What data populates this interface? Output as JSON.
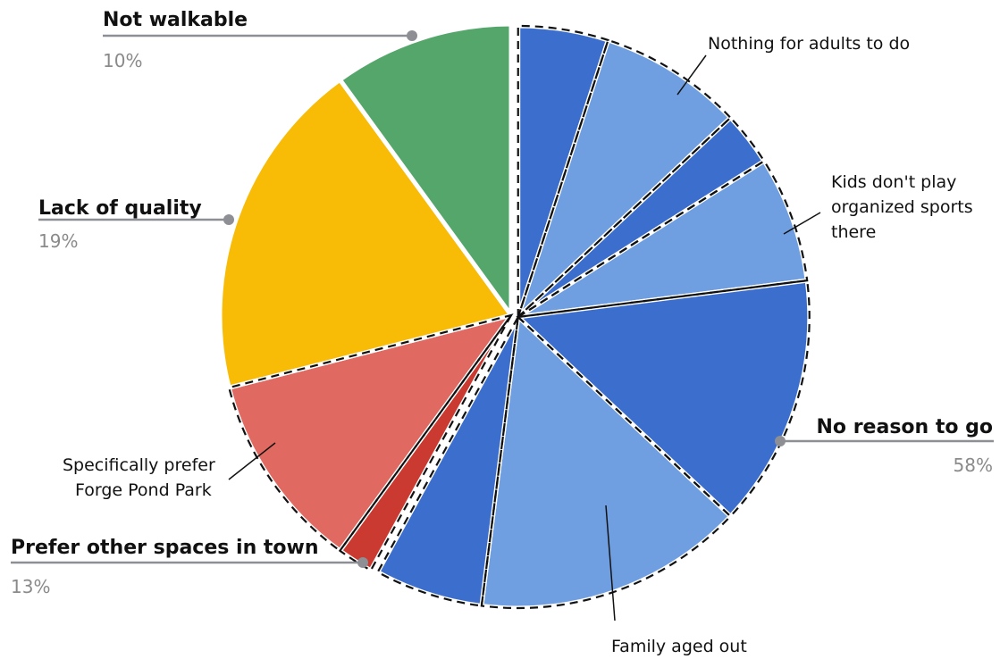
{
  "chart_data": {
    "type": "pie",
    "title": "",
    "slices": [
      {
        "label": "No reason to go: other",
        "value": 5,
        "color": "#3c6fcd"
      },
      {
        "label": "Nothing for adults to do",
        "value": 8,
        "color": "#6f9fe1"
      },
      {
        "label": "No reason to go: other",
        "value": 3,
        "color": "#3c6fcd"
      },
      {
        "label": "Kids don't play organized sports there",
        "value": 7,
        "color": "#6f9fe1"
      },
      {
        "label": "No reason to go: other",
        "value": 14,
        "color": "#3c6fcd"
      },
      {
        "label": "Family aged out",
        "value": 15,
        "color": "#6f9fe1"
      },
      {
        "label": "No reason to go: other",
        "value": 6,
        "color": "#3c6fcd"
      },
      {
        "label": "Prefer other spaces in town: other",
        "value": 2,
        "color": "#cb3a30"
      },
      {
        "label": "Specifically prefer Forge Pond Park",
        "value": 11,
        "color": "#e06a61"
      },
      {
        "label": "Lack of quality",
        "value": 19,
        "color": "#f8bb06"
      },
      {
        "label": "Not walkable",
        "value": 10,
        "color": "#55a66b"
      }
    ],
    "groups": [
      {
        "name": "No reason to go",
        "percent": "58%"
      },
      {
        "name": "Prefer other spaces in town",
        "percent": "13%"
      },
      {
        "name": "Lack of quality",
        "percent": "19%"
      },
      {
        "name": "Not walkable",
        "percent": "10%"
      }
    ],
    "annotations": {
      "nothing_adults": "Nothing for adults to do",
      "kids_sports": [
        "Kids don't play",
        "organized sports",
        "there"
      ],
      "family_aged": "Family aged out",
      "forge_pond": [
        "Specifically prefer",
        "Forge Pond Park"
      ]
    }
  }
}
